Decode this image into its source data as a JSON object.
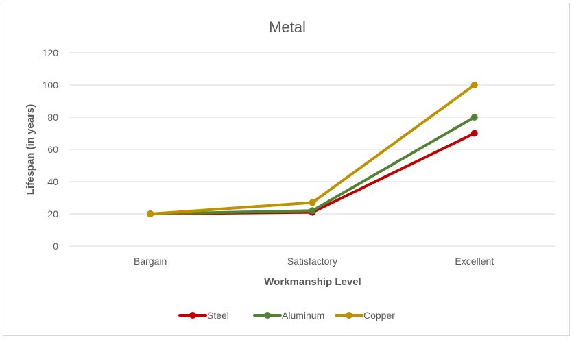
{
  "chart_data": {
    "type": "line",
    "title": "Metal",
    "xlabel": "Workmanship Level",
    "ylabel": "Lifespan (in years)",
    "categories": [
      "Bargain",
      "Satisfactory",
      "Excellent"
    ],
    "ylim": [
      0,
      120
    ],
    "yticks": [
      0,
      20,
      40,
      60,
      80,
      100,
      120
    ],
    "grid": true,
    "legend_position": "bottom",
    "series": [
      {
        "name": "Steel",
        "values": [
          20,
          21,
          70
        ],
        "color": "#c00000"
      },
      {
        "name": "Aluminum",
        "values": [
          20,
          22,
          80
        ],
        "color": "#548235"
      },
      {
        "name": "Copper",
        "values": [
          20,
          27,
          100
        ],
        "color": "#bf9000"
      }
    ]
  }
}
